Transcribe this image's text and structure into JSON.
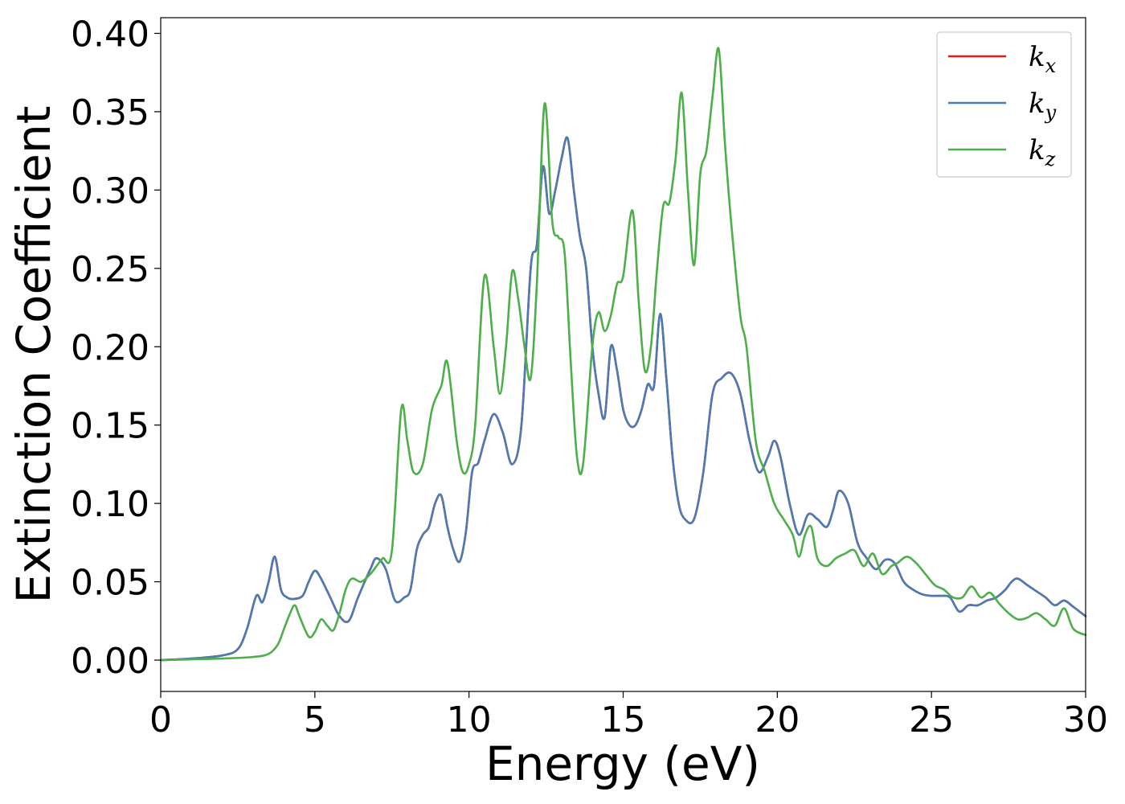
{
  "chart_data": {
    "type": "line",
    "xlabel": "Energy (eV)",
    "ylabel": "Extinction Coefficient",
    "xlim": [
      0,
      30
    ],
    "ylim": [
      -0.02,
      0.41
    ],
    "xticks": [
      "0",
      "5",
      "10",
      "15",
      "20",
      "25",
      "30"
    ],
    "yticks": [
      "0.00",
      "0.05",
      "0.10",
      "0.15",
      "0.20",
      "0.25",
      "0.30",
      "0.35",
      "0.40"
    ],
    "grid": false,
    "legend_position": "top-right",
    "series": [
      {
        "name": "k",
        "subscript": "x",
        "color": "#e41a1c",
        "x": [
          0,
          1,
          2,
          2.5,
          2.8,
          3.1,
          3.3,
          3.5,
          3.7,
          3.9,
          4.1,
          4.3,
          4.6,
          4.8,
          5.0,
          5.2,
          5.5,
          5.8,
          6.1,
          6.4,
          6.8,
          7.0,
          7.3,
          7.6,
          7.9,
          8.1,
          8.3,
          8.5,
          8.7,
          8.9,
          9.1,
          9.3,
          9.5,
          9.7,
          9.9,
          10.1,
          10.3,
          10.5,
          10.8,
          11.1,
          11.4,
          11.7,
          12.0,
          12.2,
          12.4,
          12.6,
          12.8,
          13.0,
          13.2,
          13.4,
          13.6,
          13.8,
          14.0,
          14.2,
          14.4,
          14.6,
          14.8,
          15.0,
          15.2,
          15.4,
          15.6,
          15.8,
          16.0,
          16.2,
          16.4,
          16.6,
          16.8,
          17.0,
          17.3,
          17.6,
          17.9,
          18.2,
          18.5,
          18.8,
          19.1,
          19.4,
          19.7,
          19.9,
          20.1,
          20.4,
          20.7,
          21.0,
          21.3,
          21.6,
          21.8,
          22.0,
          22.3,
          22.6,
          22.9,
          23.2,
          23.5,
          23.8,
          24.1,
          24.4,
          24.7,
          25.0,
          25.3,
          25.6,
          25.9,
          26.2,
          26.5,
          26.8,
          27.1,
          27.4,
          27.6,
          27.8,
          28.1,
          28.4,
          28.7,
          29.0,
          29.3,
          29.6,
          30.0
        ],
        "y": [
          0.0,
          0.001,
          0.003,
          0.007,
          0.02,
          0.041,
          0.037,
          0.05,
          0.066,
          0.045,
          0.04,
          0.039,
          0.041,
          0.05,
          0.057,
          0.052,
          0.04,
          0.028,
          0.025,
          0.04,
          0.058,
          0.065,
          0.058,
          0.038,
          0.04,
          0.045,
          0.07,
          0.08,
          0.085,
          0.1,
          0.105,
          0.085,
          0.07,
          0.063,
          0.082,
          0.12,
          0.126,
          0.14,
          0.157,
          0.145,
          0.125,
          0.15,
          0.25,
          0.265,
          0.315,
          0.285,
          0.3,
          0.32,
          0.333,
          0.3,
          0.27,
          0.25,
          0.2,
          0.17,
          0.155,
          0.2,
          0.185,
          0.16,
          0.15,
          0.15,
          0.16,
          0.176,
          0.175,
          0.221,
          0.18,
          0.13,
          0.1,
          0.09,
          0.09,
          0.12,
          0.17,
          0.18,
          0.183,
          0.17,
          0.14,
          0.12,
          0.13,
          0.14,
          0.13,
          0.1,
          0.08,
          0.093,
          0.09,
          0.085,
          0.095,
          0.108,
          0.1,
          0.075,
          0.065,
          0.058,
          0.064,
          0.062,
          0.05,
          0.045,
          0.042,
          0.041,
          0.041,
          0.04,
          0.031,
          0.035,
          0.035,
          0.038,
          0.04,
          0.045,
          0.05,
          0.052,
          0.048,
          0.044,
          0.04,
          0.035,
          0.038,
          0.034,
          0.028
        ]
      },
      {
        "name": "k",
        "subscript": "y",
        "color": "#4a7bb5",
        "x": [
          0,
          1,
          2,
          2.5,
          2.8,
          3.1,
          3.3,
          3.5,
          3.7,
          3.9,
          4.1,
          4.3,
          4.6,
          4.8,
          5.0,
          5.2,
          5.5,
          5.8,
          6.1,
          6.4,
          6.8,
          7.0,
          7.3,
          7.6,
          7.9,
          8.1,
          8.3,
          8.5,
          8.7,
          8.9,
          9.1,
          9.3,
          9.5,
          9.7,
          9.9,
          10.1,
          10.3,
          10.5,
          10.8,
          11.1,
          11.4,
          11.7,
          12.0,
          12.2,
          12.4,
          12.6,
          12.8,
          13.0,
          13.2,
          13.4,
          13.6,
          13.8,
          14.0,
          14.2,
          14.4,
          14.6,
          14.8,
          15.0,
          15.2,
          15.4,
          15.6,
          15.8,
          16.0,
          16.2,
          16.4,
          16.6,
          16.8,
          17.0,
          17.3,
          17.6,
          17.9,
          18.2,
          18.5,
          18.8,
          19.1,
          19.4,
          19.7,
          19.9,
          20.1,
          20.4,
          20.7,
          21.0,
          21.3,
          21.6,
          21.8,
          22.0,
          22.3,
          22.6,
          22.9,
          23.2,
          23.5,
          23.8,
          24.1,
          24.4,
          24.7,
          25.0,
          25.3,
          25.6,
          25.9,
          26.2,
          26.5,
          26.8,
          27.1,
          27.4,
          27.6,
          27.8,
          28.1,
          28.4,
          28.7,
          29.0,
          29.3,
          29.6,
          30.0
        ],
        "y": [
          0.0,
          0.001,
          0.003,
          0.007,
          0.02,
          0.041,
          0.037,
          0.05,
          0.066,
          0.045,
          0.04,
          0.039,
          0.041,
          0.05,
          0.057,
          0.052,
          0.04,
          0.028,
          0.025,
          0.04,
          0.058,
          0.065,
          0.058,
          0.038,
          0.04,
          0.045,
          0.07,
          0.08,
          0.085,
          0.1,
          0.105,
          0.085,
          0.07,
          0.063,
          0.082,
          0.12,
          0.126,
          0.14,
          0.157,
          0.145,
          0.125,
          0.15,
          0.25,
          0.265,
          0.315,
          0.285,
          0.3,
          0.32,
          0.333,
          0.3,
          0.27,
          0.25,
          0.2,
          0.17,
          0.155,
          0.2,
          0.185,
          0.16,
          0.15,
          0.15,
          0.16,
          0.176,
          0.175,
          0.221,
          0.18,
          0.13,
          0.1,
          0.09,
          0.09,
          0.12,
          0.17,
          0.18,
          0.183,
          0.17,
          0.14,
          0.12,
          0.13,
          0.14,
          0.13,
          0.1,
          0.08,
          0.093,
          0.09,
          0.085,
          0.095,
          0.108,
          0.1,
          0.075,
          0.065,
          0.058,
          0.064,
          0.062,
          0.05,
          0.045,
          0.042,
          0.041,
          0.041,
          0.04,
          0.031,
          0.035,
          0.035,
          0.038,
          0.04,
          0.045,
          0.05,
          0.052,
          0.048,
          0.044,
          0.04,
          0.035,
          0.038,
          0.034,
          0.028
        ]
      },
      {
        "name": "k",
        "subscript": "z",
        "color": "#4daf4a",
        "x": [
          0,
          1,
          2,
          3,
          3.5,
          3.8,
          4.0,
          4.2,
          4.35,
          4.5,
          4.8,
          5.0,
          5.2,
          5.4,
          5.6,
          5.8,
          6.0,
          6.2,
          6.5,
          6.8,
          7.0,
          7.2,
          7.5,
          7.8,
          8.0,
          8.2,
          8.5,
          8.8,
          9.1,
          9.3,
          9.6,
          9.8,
          10.0,
          10.2,
          10.5,
          10.8,
          11.0,
          11.2,
          11.4,
          11.6,
          11.8,
          12.0,
          12.2,
          12.45,
          12.7,
          12.9,
          13.1,
          13.3,
          13.5,
          13.7,
          14.0,
          14.2,
          14.4,
          14.6,
          14.8,
          15.0,
          15.3,
          15.5,
          15.7,
          15.9,
          16.1,
          16.3,
          16.5,
          16.7,
          16.9,
          17.1,
          17.3,
          17.5,
          17.7,
          17.9,
          18.1,
          18.3,
          18.5,
          18.8,
          19.0,
          19.3,
          19.6,
          19.9,
          20.2,
          20.5,
          20.7,
          20.9,
          21.1,
          21.3,
          21.6,
          21.9,
          22.2,
          22.5,
          22.8,
          23.1,
          23.4,
          23.7,
          23.9,
          24.2,
          24.5,
          24.8,
          25.1,
          25.4,
          25.7,
          26.0,
          26.3,
          26.6,
          26.9,
          27.2,
          27.5,
          27.8,
          28.1,
          28.4,
          28.7,
          29.0,
          29.3,
          29.6,
          30.0
        ],
        "y": [
          0.0,
          0.0005,
          0.001,
          0.002,
          0.004,
          0.01,
          0.02,
          0.03,
          0.035,
          0.028,
          0.015,
          0.018,
          0.026,
          0.022,
          0.019,
          0.03,
          0.045,
          0.052,
          0.05,
          0.055,
          0.06,
          0.065,
          0.07,
          0.16,
          0.14,
          0.12,
          0.125,
          0.16,
          0.175,
          0.19,
          0.14,
          0.12,
          0.125,
          0.15,
          0.245,
          0.2,
          0.17,
          0.2,
          0.248,
          0.23,
          0.2,
          0.18,
          0.24,
          0.355,
          0.28,
          0.27,
          0.26,
          0.19,
          0.13,
          0.125,
          0.2,
          0.222,
          0.21,
          0.22,
          0.24,
          0.245,
          0.287,
          0.23,
          0.185,
          0.2,
          0.25,
          0.29,
          0.292,
          0.32,
          0.362,
          0.3,
          0.252,
          0.31,
          0.325,
          0.36,
          0.39,
          0.33,
          0.28,
          0.22,
          0.2,
          0.14,
          0.12,
          0.1,
          0.09,
          0.08,
          0.066,
          0.08,
          0.085,
          0.065,
          0.06,
          0.065,
          0.068,
          0.07,
          0.06,
          0.068,
          0.055,
          0.06,
          0.062,
          0.066,
          0.062,
          0.055,
          0.048,
          0.045,
          0.04,
          0.04,
          0.047,
          0.04,
          0.043,
          0.036,
          0.03,
          0.026,
          0.027,
          0.03,
          0.026,
          0.022,
          0.033,
          0.02,
          0.016
        ]
      }
    ]
  }
}
